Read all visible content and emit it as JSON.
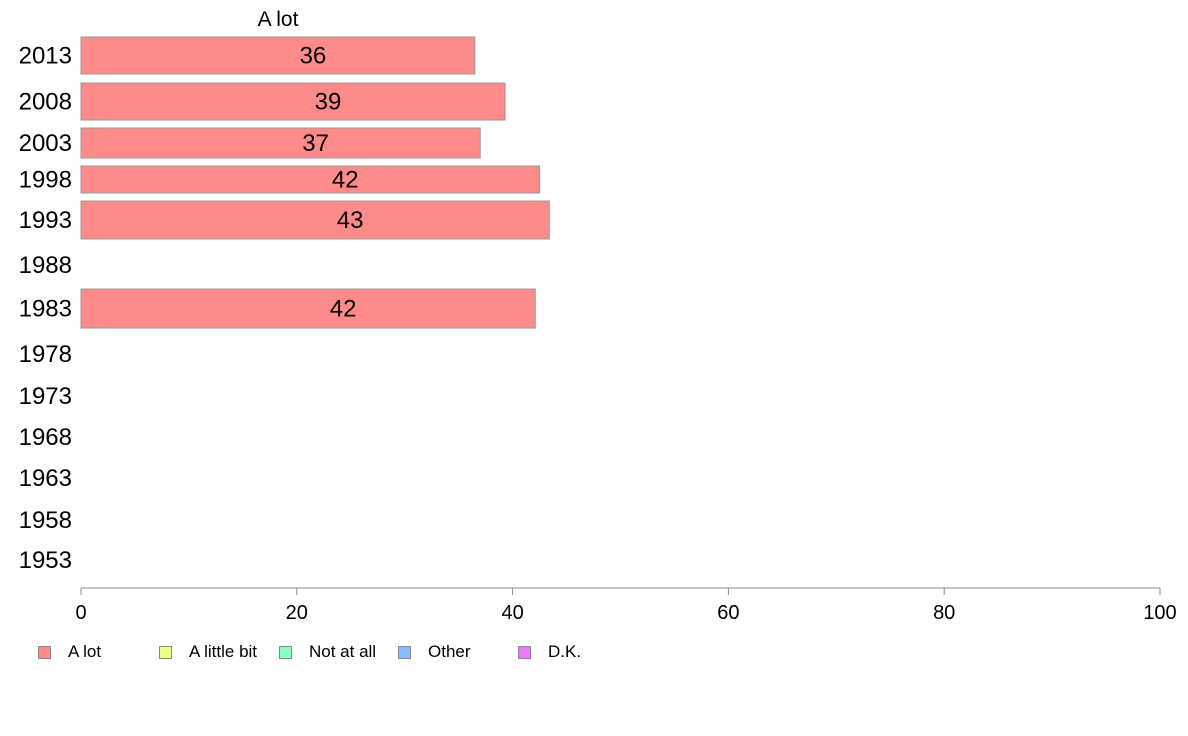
{
  "chart_data": {
    "type": "bar",
    "orientation": "horizontal",
    "title": "A lot",
    "categories": [
      "2013",
      "2008",
      "2003",
      "1998",
      "1993",
      "1988",
      "1983",
      "1978",
      "1973",
      "1968",
      "1963",
      "1958",
      "1953"
    ],
    "series": [
      {
        "name": "A lot",
        "color": "#ff8a8a",
        "values": [
          36.5,
          39.3,
          37.0,
          42.5,
          43.4,
          null,
          42.1,
          null,
          null,
          null,
          null,
          null,
          null
        ],
        "labels": [
          "36",
          "39",
          "37",
          "42",
          "43",
          null,
          "42",
          null,
          null,
          null,
          null,
          null,
          null
        ]
      }
    ],
    "xlim": [
      0,
      100
    ],
    "xticks": [
      "0",
      "20",
      "40",
      "60",
      "80",
      "100"
    ],
    "grid": false,
    "legend_position": "bottom",
    "legend": [
      {
        "label": "A lot",
        "color": "#ff8a8a"
      },
      {
        "label": "A little bit",
        "color": "#eeff88"
      },
      {
        "label": "Not at all",
        "color": "#88ffbb"
      },
      {
        "label": "Other",
        "color": "#88bbff"
      },
      {
        "label": "D.K.",
        "color": "#ee77ff"
      }
    ]
  }
}
